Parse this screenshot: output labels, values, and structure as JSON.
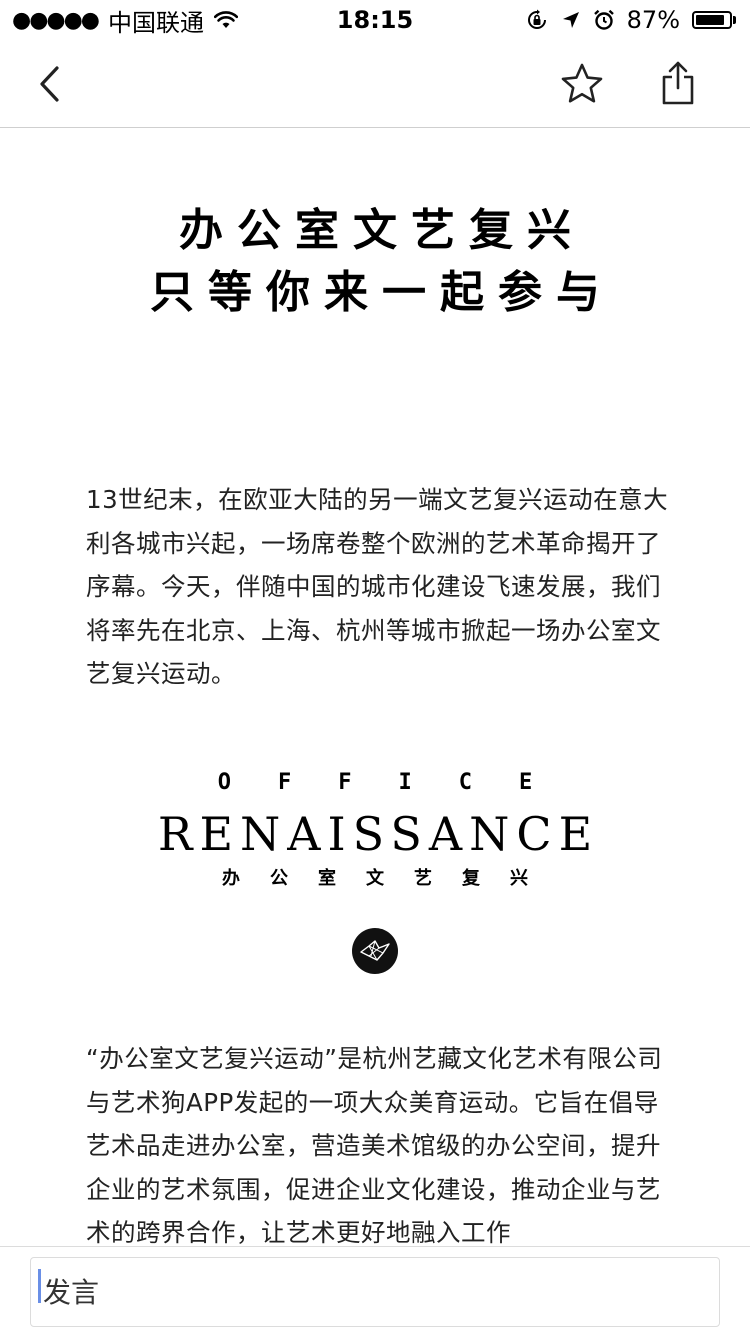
{
  "status_bar": {
    "signal": "●●●●●",
    "carrier": "中国联通",
    "time": "18:15",
    "battery_percent": "87%",
    "battery_level": 0.87
  },
  "nav": {
    "icons": [
      "chevron-left-icon",
      "star-icon",
      "share-icon"
    ]
  },
  "article": {
    "headline_line1": "办公室文艺复兴",
    "headline_line2": "只等你来一起参与",
    "paragraph1": "13世纪末，在欧亚大陆的另一端文艺复兴运动在意大利各城市兴起，一场席卷整个欧洲的艺术革命揭开了序幕。今天，伴随中国的城市化建设飞速发展，我们将率先在北京、上海、杭州等城市掀起一场办公室文艺复兴运动。",
    "logo": {
      "line1": "OFFICE",
      "line2": "RENAISSANCE",
      "line3": "办公室文艺复兴"
    },
    "paragraph2": "“办公室文艺复兴运动”是杭州艺藏文化艺术有限公司与艺术狗APP发起的一项大众美育运动。它旨在倡导艺术品走进办公室，营造美术馆级的办公空间，提升企业的艺术氛围，促进企业文化建设，推动企业与艺术的跨界合作，让艺术更好地融入工作"
  },
  "comment": {
    "placeholder": "发言"
  }
}
